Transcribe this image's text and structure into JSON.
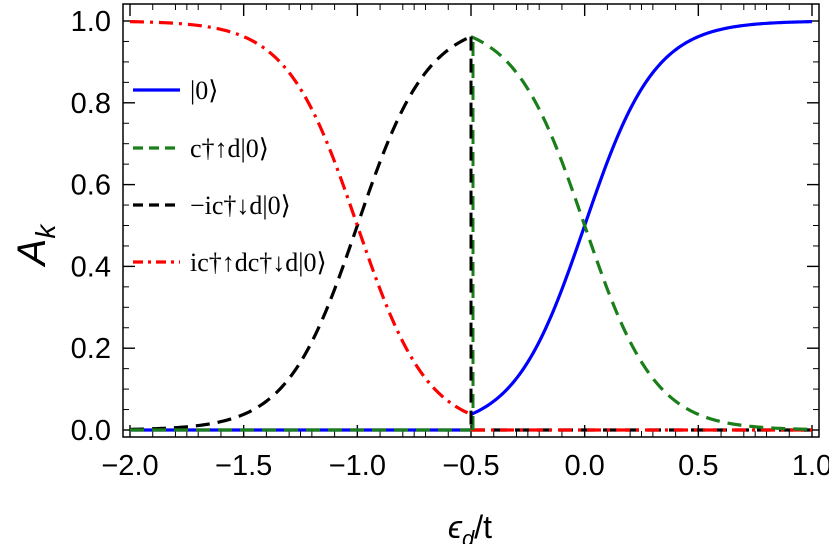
{
  "chart_data": {
    "type": "line",
    "title": "",
    "xlabel": "ϵ_d/t",
    "ylabel": "A_k",
    "xlim": [
      -2.0,
      1.0
    ],
    "ylim": [
      0.0,
      1.0
    ],
    "x_ticks": [
      "−2.0",
      "−1.5",
      "−1.0",
      "−0.5",
      "0.0",
      "0.5",
      "1.0"
    ],
    "y_ticks": [
      "0.0",
      "0.2",
      "0.4",
      "0.6",
      "0.8",
      "1.0"
    ],
    "grid": false,
    "legend_position": "left",
    "transition_x": -0.5,
    "x": [
      -2.0,
      -1.75,
      -1.5,
      -1.25,
      -1.0,
      -0.75,
      -0.5,
      -0.25,
      0.0,
      0.25,
      0.5,
      0.75,
      1.0
    ],
    "series": [
      {
        "name": "|0⟩",
        "color": "#0000ff",
        "style": "solid",
        "values": [
          0.0,
          0.0,
          0.0,
          0.0,
          0.0,
          0.0,
          0.04,
          0.12,
          0.5,
          0.88,
          0.96,
          0.98,
          0.99
        ]
      },
      {
        "name": "c†↑d|0⟩",
        "color": "#1a7f1a",
        "style": "dashed",
        "values": [
          0.0,
          0.0,
          0.0,
          0.0,
          0.0,
          0.0,
          0.96,
          0.88,
          0.5,
          0.12,
          0.04,
          0.02,
          0.01
        ]
      },
      {
        "name": "−ic†↓d|0⟩",
        "color": "#000000",
        "style": "dashed",
        "values": [
          0.01,
          0.03,
          0.07,
          0.2,
          0.5,
          0.83,
          0.96,
          0.0,
          0.0,
          0.0,
          0.0,
          0.0,
          0.0
        ]
      },
      {
        "name": "ic†↑dc†↓d|0⟩",
        "color": "#ff0000",
        "style": "dashdot",
        "values": [
          0.99,
          0.97,
          0.93,
          0.8,
          0.5,
          0.17,
          0.04,
          0.0,
          0.0,
          0.0,
          0.0,
          0.0,
          0.0
        ]
      }
    ]
  }
}
